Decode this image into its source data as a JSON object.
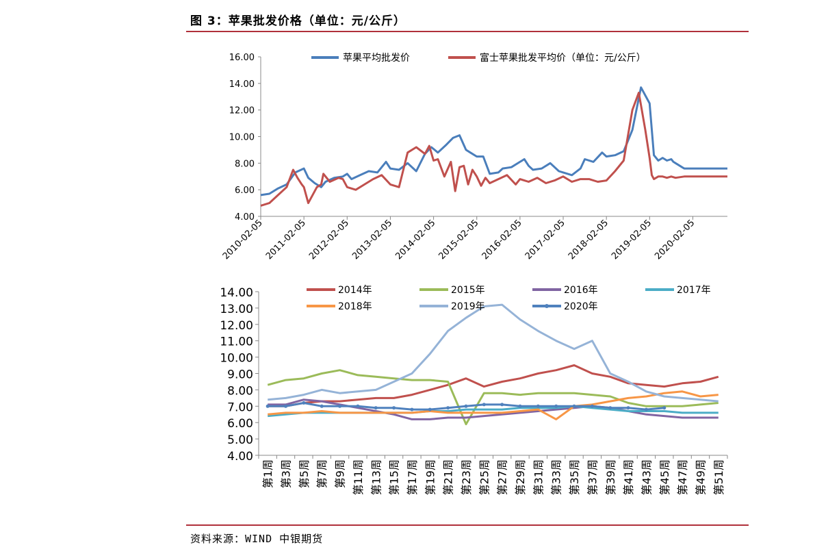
{
  "page": {
    "title": "图 3：苹果批发价格（单位：元/公斤）",
    "source": "资料来源：WIND   中银期货"
  },
  "chart_data": [
    {
      "type": "line",
      "x_tick_labels": [
        "2010-02-05",
        "2011-02-05",
        "2012-02-05",
        "2013-02-05",
        "2014-02-05",
        "2015-02-05",
        "2016-02-05",
        "2017-02-05",
        "2018-02-05",
        "2019-02-05",
        "2020-02-05"
      ],
      "y_tick_labels": [
        "4.00",
        "6.00",
        "8.00",
        "10.00",
        "12.00",
        "14.00",
        "16.00"
      ],
      "ylim": [
        4,
        16
      ],
      "xlim": [
        2010.0,
        2020.8
      ],
      "legend_position": "top",
      "series": [
        {
          "name": "苹果平均批发价",
          "color": "#4a7ebb",
          "x": [
            2010.0,
            2010.2,
            2010.4,
            2010.6,
            2010.8,
            2011.0,
            2011.1,
            2011.25,
            2011.4,
            2011.5,
            2011.7,
            2011.9,
            2012.0,
            2012.1,
            2012.3,
            2012.5,
            2012.7,
            2012.9,
            2013.0,
            2013.2,
            2013.4,
            2013.6,
            2013.8,
            2013.95,
            2014.1,
            2014.3,
            2014.45,
            2014.6,
            2014.75,
            2014.85,
            2015.0,
            2015.15,
            2015.3,
            2015.5,
            2015.6,
            2015.8,
            2016.0,
            2016.1,
            2016.2,
            2016.3,
            2016.5,
            2016.7,
            2016.9,
            2017.0,
            2017.2,
            2017.4,
            2017.5,
            2017.7,
            2017.9,
            2018.0,
            2018.2,
            2018.4,
            2018.6,
            2018.8,
            2019.0,
            2019.1,
            2019.2,
            2019.3,
            2019.35,
            2019.4,
            2019.5,
            2019.55,
            2019.6,
            2019.7,
            2019.75,
            2019.8,
            2020.0,
            2020.2,
            2020.4,
            2020.6,
            2020.8
          ],
          "y": [
            5.6,
            5.7,
            6.1,
            6.4,
            7.3,
            7.6,
            6.9,
            6.5,
            6.2,
            6.6,
            6.9,
            7.0,
            7.2,
            6.8,
            7.1,
            7.4,
            7.3,
            8.1,
            7.6,
            7.5,
            8.0,
            7.4,
            8.7,
            9.2,
            8.8,
            9.4,
            9.9,
            10.1,
            9.0,
            8.8,
            8.5,
            8.5,
            7.2,
            7.3,
            7.6,
            7.7,
            8.1,
            8.3,
            7.8,
            7.5,
            7.6,
            8.0,
            7.4,
            7.3,
            7.1,
            7.6,
            8.3,
            8.1,
            8.8,
            8.5,
            8.6,
            8.9,
            10.5,
            13.7,
            12.5,
            8.6,
            8.2,
            8.4,
            8.3,
            8.2,
            8.3,
            8.1,
            8.0,
            7.8,
            7.7,
            7.6,
            7.6,
            7.6,
            7.6,
            7.6,
            7.6
          ]
        },
        {
          "name": "富士苹果批发平均价（单位：元/公斤）",
          "color": "#c0504d",
          "x": [
            2010.0,
            2010.2,
            2010.4,
            2010.6,
            2010.75,
            2010.85,
            2010.95,
            2011.0,
            2011.1,
            2011.2,
            2011.3,
            2011.4,
            2011.45,
            2011.6,
            2011.8,
            2011.9,
            2012.0,
            2012.2,
            2012.4,
            2012.6,
            2012.8,
            2013.0,
            2013.2,
            2013.4,
            2013.6,
            2013.8,
            2013.9,
            2014.0,
            2014.1,
            2014.25,
            2014.4,
            2014.5,
            2014.6,
            2014.7,
            2014.8,
            2014.9,
            2015.0,
            2015.1,
            2015.15,
            2015.2,
            2015.3,
            2015.5,
            2015.7,
            2015.9,
            2016.0,
            2016.2,
            2016.4,
            2016.6,
            2016.8,
            2017.0,
            2017.2,
            2017.4,
            2017.6,
            2017.8,
            2018.0,
            2018.2,
            2018.4,
            2018.6,
            2018.75,
            2018.9,
            2019.0,
            2019.05,
            2019.1,
            2019.15,
            2019.2,
            2019.3,
            2019.4,
            2019.5,
            2019.6,
            2019.8,
            2020.0,
            2020.2,
            2020.4,
            2020.6,
            2020.8
          ],
          "y": [
            4.8,
            5.0,
            5.6,
            6.2,
            7.5,
            6.9,
            6.4,
            6.2,
            5.0,
            5.6,
            6.2,
            6.4,
            7.2,
            6.6,
            6.9,
            6.8,
            6.2,
            6.0,
            6.4,
            6.8,
            7.1,
            6.4,
            6.2,
            8.8,
            9.2,
            8.7,
            9.3,
            8.2,
            8.3,
            7.0,
            8.1,
            5.9,
            7.7,
            7.8,
            6.4,
            7.5,
            7.0,
            6.3,
            6.6,
            6.9,
            6.5,
            6.8,
            7.1,
            6.4,
            6.8,
            6.6,
            6.9,
            6.5,
            6.7,
            7.0,
            6.6,
            6.8,
            6.8,
            6.6,
            6.7,
            7.4,
            8.2,
            12.0,
            13.3,
            10.5,
            8.4,
            7.1,
            6.8,
            6.9,
            7.0,
            7.0,
            6.9,
            7.0,
            6.9,
            7.0,
            7.0,
            7.0,
            7.0,
            7.0,
            7.0
          ]
        }
      ]
    },
    {
      "type": "line",
      "categories": [
        "第1周",
        "第3周",
        "第5周",
        "第7周",
        "第9周",
        "第11周",
        "第13周",
        "第15周",
        "第17周",
        "第19周",
        "第21周",
        "第23周",
        "第25周",
        "第27周",
        "第29周",
        "第31周",
        "第33周",
        "第35周",
        "第37周",
        "第39周",
        "第41周",
        "第43周",
        "第45周",
        "第47周",
        "第49周",
        "第51周"
      ],
      "y_tick_labels": [
        "4.00",
        "5.00",
        "6.00",
        "7.00",
        "8.00",
        "9.00",
        "10.00",
        "11.00",
        "12.00",
        "13.00",
        "14.00"
      ],
      "ylim": [
        4,
        14
      ],
      "legend_position": "top",
      "series": [
        {
          "name": "2014年",
          "color": "#c0504d",
          "values": [
            7.0,
            7.0,
            7.2,
            7.3,
            7.3,
            7.4,
            7.5,
            7.5,
            7.7,
            8.0,
            8.3,
            8.7,
            8.2,
            8.5,
            8.7,
            9.0,
            9.2,
            9.5,
            9.0,
            8.8,
            8.4,
            8.3,
            8.2,
            8.4,
            8.5,
            8.8
          ]
        },
        {
          "name": "2015年",
          "color": "#9bbb59",
          "values": [
            8.3,
            8.6,
            8.7,
            9.0,
            9.2,
            8.9,
            8.8,
            8.7,
            8.6,
            8.6,
            8.5,
            5.9,
            7.8,
            7.8,
            7.7,
            7.8,
            7.8,
            7.8,
            7.7,
            7.6,
            7.2,
            7.0,
            7.0,
            7.0,
            7.1,
            7.2
          ]
        },
        {
          "name": "2016年",
          "color": "#8064a2",
          "values": [
            7.1,
            7.1,
            7.4,
            7.3,
            7.1,
            6.9,
            6.7,
            6.5,
            6.2,
            6.2,
            6.3,
            6.3,
            6.4,
            6.5,
            6.6,
            6.7,
            6.8,
            6.9,
            7.0,
            6.9,
            6.7,
            6.5,
            6.4,
            6.3,
            6.3,
            6.3
          ]
        },
        {
          "name": "2017年",
          "color": "#4bacc6",
          "values": [
            6.4,
            6.5,
            6.6,
            6.6,
            6.6,
            6.6,
            6.6,
            6.6,
            6.6,
            6.7,
            6.7,
            6.8,
            6.8,
            6.8,
            6.9,
            6.9,
            6.9,
            7.0,
            6.9,
            6.8,
            6.7,
            6.7,
            6.7,
            6.6,
            6.6,
            6.6
          ]
        },
        {
          "name": "2018年",
          "color": "#f79646",
          "values": [
            6.5,
            6.6,
            6.6,
            6.7,
            6.6,
            6.6,
            6.6,
            6.6,
            6.6,
            6.7,
            6.6,
            6.6,
            6.6,
            6.6,
            6.7,
            6.8,
            6.2,
            7.0,
            7.1,
            7.3,
            7.5,
            7.6,
            7.8,
            7.9,
            7.6,
            7.7
          ]
        },
        {
          "name": "2019年",
          "color": "#95b3d7",
          "values": [
            7.4,
            7.5,
            7.7,
            8.0,
            7.8,
            7.9,
            8.0,
            8.5,
            9.0,
            10.2,
            11.6,
            12.4,
            13.1,
            13.2,
            12.3,
            11.6,
            11.0,
            10.5,
            11.0,
            9.0,
            8.5,
            7.9,
            7.6,
            7.5,
            7.4,
            7.3
          ]
        },
        {
          "name": "2020年",
          "color": "#4f81bd",
          "values": [
            7.0,
            7.0,
            7.2,
            7.0,
            7.0,
            7.0,
            6.9,
            6.9,
            6.8,
            6.8,
            6.9,
            7.0,
            7.1,
            7.1,
            7.0,
            7.0,
            7.0,
            7.0,
            7.0,
            6.9,
            6.9,
            6.8,
            6.9,
            null,
            null,
            null
          ]
        }
      ]
    }
  ]
}
